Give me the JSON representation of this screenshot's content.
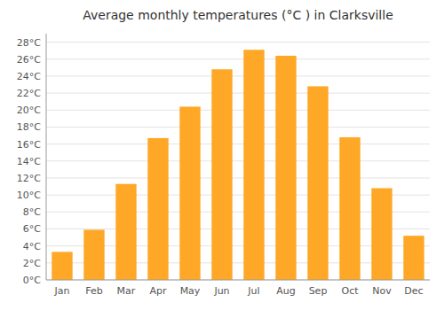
{
  "chart_data": {
    "type": "bar",
    "title": "Average monthly temperatures (°C ) in Clarksville",
    "categories": [
      "Jan",
      "Feb",
      "Mar",
      "Apr",
      "May",
      "Jun",
      "Jul",
      "Aug",
      "Sep",
      "Oct",
      "Nov",
      "Dec"
    ],
    "values": [
      3.3,
      5.9,
      11.3,
      16.7,
      20.4,
      24.8,
      27.1,
      26.4,
      22.8,
      16.8,
      10.8,
      5.2
    ],
    "color": "#FFA726",
    "ylim": [
      0,
      29
    ],
    "yticks": [
      {
        "value": 0,
        "label": "0°C"
      },
      {
        "value": 2,
        "label": "2°C"
      },
      {
        "value": 4,
        "label": "4°C"
      },
      {
        "value": 6,
        "label": "6°C"
      },
      {
        "value": 8,
        "label": "8°C"
      },
      {
        "value": 10,
        "label": "10°C"
      },
      {
        "value": 12,
        "label": "12°C"
      },
      {
        "value": 14,
        "label": "14°C"
      },
      {
        "value": 16,
        "label": "16°C"
      },
      {
        "value": 18,
        "label": "18°C"
      },
      {
        "value": 20,
        "label": "20°C"
      },
      {
        "value": 22,
        "label": "22°C"
      },
      {
        "value": 24,
        "label": "24°C"
      },
      {
        "value": 26,
        "label": "26°C"
      },
      {
        "value": 28,
        "label": "28°C"
      }
    ],
    "grid": true
  }
}
